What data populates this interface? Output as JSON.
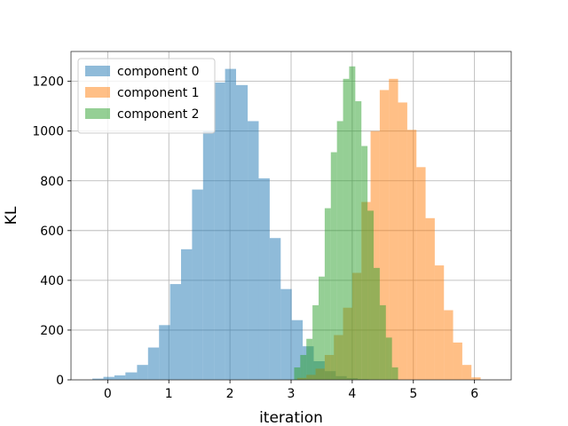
{
  "chart_data": {
    "type": "bar",
    "subtype": "overlaid-histogram",
    "xlabel": "iteration",
    "ylabel": "KL",
    "xlim": [
      -0.6,
      6.6
    ],
    "ylim": [
      0,
      1320
    ],
    "xticks": [
      0,
      1,
      2,
      3,
      4,
      5,
      6
    ],
    "yticks": [
      0,
      200,
      400,
      600,
      800,
      1000,
      1200
    ],
    "grid": true,
    "legend_position": "top-left",
    "bar_opacity": 0.5,
    "series": [
      {
        "name": "component 0",
        "color": "#1f77b4",
        "bin_edges": [
          -0.25,
          -0.07,
          0.11,
          0.29,
          0.48,
          0.66,
          0.84,
          1.02,
          1.2,
          1.38,
          1.56,
          1.74,
          1.92,
          2.1,
          2.29,
          2.47,
          2.65,
          2.83,
          3.01,
          3.19,
          3.37,
          3.55,
          3.73,
          3.91,
          4.09,
          4.27,
          4.45
        ],
        "values": [
          5,
          12,
          18,
          30,
          60,
          130,
          220,
          385,
          525,
          765,
          1000,
          1195,
          1250,
          1185,
          1040,
          810,
          570,
          365,
          240,
          135,
          75,
          35,
          15,
          7,
          3,
          1
        ]
      },
      {
        "name": "component 1",
        "color": "#ff7f0e",
        "bin_edges": [
          3.1,
          3.25,
          3.4,
          3.55,
          3.7,
          3.85,
          4.0,
          4.15,
          4.3,
          4.45,
          4.6,
          4.75,
          4.9,
          5.05,
          5.2,
          5.35,
          5.5,
          5.65,
          5.8,
          5.95,
          6.1
        ],
        "values": [
          8,
          20,
          45,
          100,
          180,
          290,
          430,
          715,
          1000,
          1165,
          1210,
          1115,
          1005,
          855,
          650,
          460,
          280,
          150,
          60,
          10
        ]
      },
      {
        "name": "component 2",
        "color": "#2ca02c",
        "bin_edges": [
          3.05,
          3.15,
          3.25,
          3.35,
          3.45,
          3.55,
          3.65,
          3.75,
          3.85,
          3.95,
          4.05,
          4.15,
          4.25,
          4.35,
          4.45,
          4.55,
          4.65,
          4.75
        ],
        "values": [
          50,
          100,
          165,
          300,
          415,
          690,
          915,
          1040,
          1210,
          1260,
          1120,
          940,
          680,
          450,
          300,
          170,
          50
        ]
      }
    ]
  }
}
